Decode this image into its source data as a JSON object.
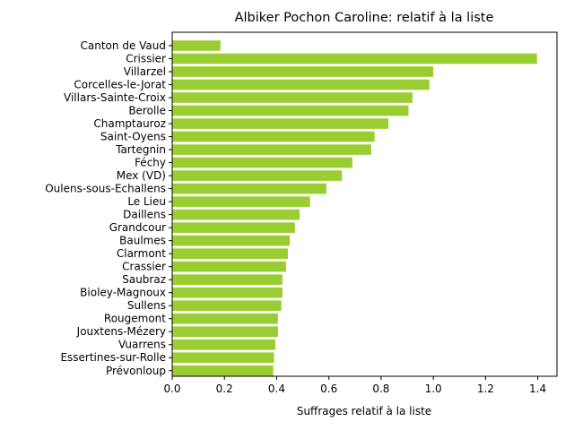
{
  "chart_data": {
    "type": "bar",
    "orientation": "horizontal",
    "title": "Albiker Pochon Caroline: relatif à la liste",
    "xlabel": "Suffrages relatif à la liste",
    "ylabel": "",
    "xlim": [
      0,
      1.4735
    ],
    "xticks": [
      0.0,
      0.2,
      0.4,
      0.6,
      0.8,
      1.0,
      1.2,
      1.4
    ],
    "xtick_labels": [
      "0.0",
      "0.2",
      "0.4",
      "0.6",
      "0.8",
      "1.0",
      "1.2",
      "1.4"
    ],
    "grid": false,
    "bar_color": "#9acd32",
    "categories": [
      "Canton de Vaud",
      "Crissier",
      "Villarzel",
      "Corcelles-le-Jorat",
      "Villars-Sainte-Croix",
      "Berolle",
      "Champtauroz",
      "Saint-Oyens",
      "Tartegnin",
      "Féchy",
      "Mex (VD)",
      "Oulens-sous-Echallens",
      "Le Lieu",
      "Daillens",
      "Grandcour",
      "Baulmes",
      "Clarmont",
      "Crassier",
      "Saubraz",
      "Bioley-Magnoux",
      "Sullens",
      "Rougemont",
      "Jouxtens-Mézery",
      "Vuarrens",
      "Essertines-sur-Rolle",
      "Prévonloup"
    ],
    "values": [
      0.185,
      1.397,
      1.0,
      0.985,
      0.92,
      0.905,
      0.828,
      0.775,
      0.762,
      0.69,
      0.65,
      0.59,
      0.528,
      0.488,
      0.47,
      0.45,
      0.443,
      0.436,
      0.422,
      0.422,
      0.418,
      0.405,
      0.405,
      0.395,
      0.39,
      0.387
    ]
  }
}
